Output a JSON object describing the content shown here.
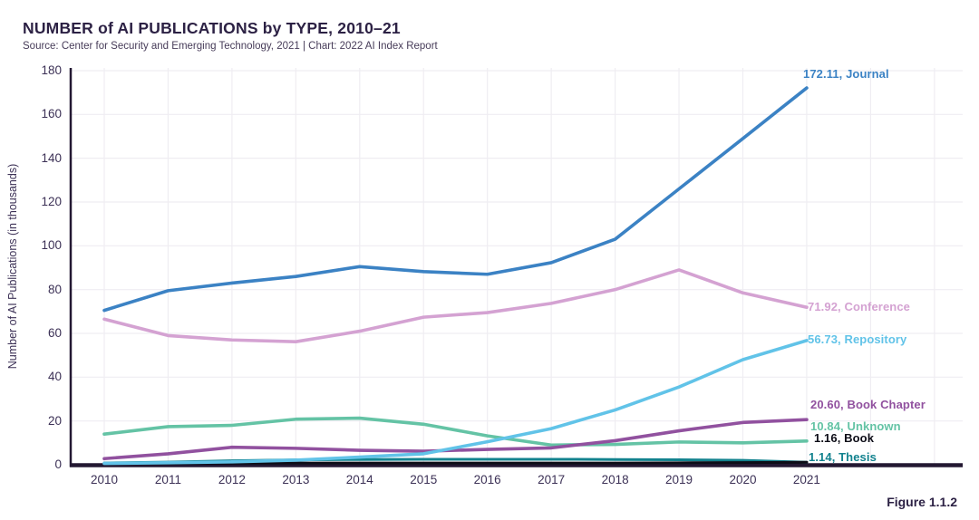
{
  "header": {
    "title": "NUMBER of AI PUBLICATIONS by TYPE, 2010–21",
    "source": "Source: Center for Security and Emerging Technology, 2021 | Chart: 2022 AI Index Report"
  },
  "figure_caption": "Figure 1.1.2",
  "chart_data": {
    "type": "line",
    "title": "NUMBER of AI PUBLICATIONS by TYPE, 2010–21",
    "xlabel": "",
    "ylabel": "Number of AI Publications (in thousands)",
    "x": [
      2010,
      2011,
      2012,
      2013,
      2014,
      2015,
      2016,
      2017,
      2018,
      2019,
      2020,
      2021
    ],
    "ylim": [
      0,
      180
    ],
    "yticks": [
      0,
      20,
      40,
      60,
      80,
      100,
      120,
      140,
      160,
      180
    ],
    "grid": true,
    "legend_position": "end-of-line labels, right side",
    "colors": {
      "grid": "#efedf2",
      "axis": "#231832",
      "tick_text": "#3c3156",
      "title_text": "#2c2144"
    },
    "series": [
      {
        "name": "Journal",
        "color": "#3b82c4",
        "end_label": "172.11, Journal",
        "final_value": 172.11,
        "values": [
          70.5,
          79.5,
          83,
          86,
          90.5,
          88.2,
          87,
          92.3,
          103,
          126,
          149,
          172.11
        ]
      },
      {
        "name": "Conference",
        "color": "#d4a2d2",
        "end_label": "71.92, Conference",
        "final_value": 71.92,
        "values": [
          66.5,
          59,
          57,
          56.2,
          61,
          67.4,
          69.5,
          73.7,
          80,
          89,
          78.5,
          71.92
        ]
      },
      {
        "name": "Repository",
        "color": "#61c3e8",
        "end_label": "56.73, Repository",
        "final_value": 56.73,
        "values": [
          0.6,
          0.9,
          1.3,
          2.1,
          3.5,
          5,
          10.5,
          16.5,
          25,
          35.5,
          48,
          56.73
        ]
      },
      {
        "name": "Book Chapter",
        "color": "#91519f",
        "end_label": "20.60, Book Chapter",
        "final_value": 20.6,
        "values": [
          2.8,
          5,
          8,
          7.5,
          6.6,
          6.2,
          7,
          7.7,
          11,
          15.5,
          19.3,
          20.6
        ]
      },
      {
        "name": "Unknown",
        "color": "#64c3a5",
        "end_label": "10.84, Unknown",
        "final_value": 10.84,
        "values": [
          14,
          17.4,
          18,
          20.8,
          21.3,
          18.5,
          13.2,
          9,
          9.3,
          10.4,
          10,
          10.84
        ]
      },
      {
        "name": "Book",
        "color": "#0d0d17",
        "end_label": "1.16, Book",
        "final_value": 1.16,
        "values": [
          0.5,
          0.6,
          0.7,
          0.8,
          0.8,
          0.8,
          0.8,
          0.8,
          0.8,
          0.9,
          1.0,
          1.16
        ]
      },
      {
        "name": "Thesis",
        "color": "#12828e",
        "end_label": "1.14, Thesis",
        "final_value": 1.14,
        "values": [
          0.8,
          1.2,
          1.8,
          2.2,
          2.4,
          2.5,
          2.5,
          2.5,
          2.4,
          2.3,
          2.0,
          1.14
        ]
      }
    ]
  }
}
